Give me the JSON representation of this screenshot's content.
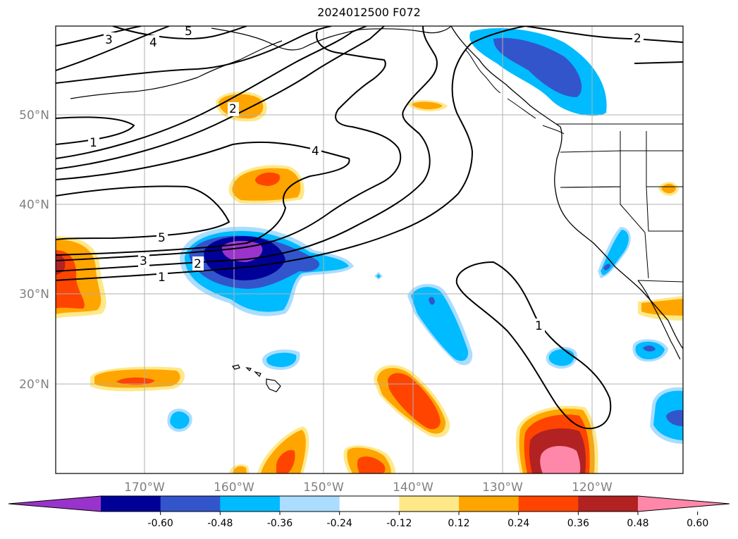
{
  "title": "2024012500 F072",
  "lat_labels": [
    "50°N",
    "40°N",
    "30°N",
    "20°N"
  ],
  "lon_labels": [
    "170°W",
    "160°W",
    "150°W",
    "140°W",
    "130°W",
    "120°W"
  ],
  "colorbar": {
    "colors": [
      "#9933cc",
      "#000099",
      "#3355cc",
      "#00bbff",
      "#aaddff",
      "#ffffff",
      "#ffe888",
      "#ffa500",
      "#ff4400",
      "#b22222",
      "#ff88aa"
    ],
    "tick_labels": [
      "-0.60",
      "-0.48",
      "-0.36",
      "-0.24",
      "-0.12",
      "0.12",
      "0.24",
      "0.36",
      "0.48",
      "0.60"
    ]
  },
  "contour_labels": [
    "3",
    "4",
    "5",
    "1",
    "2",
    "4",
    "5",
    "3",
    "2",
    "1",
    "1",
    "2"
  ],
  "colors": {
    "coast": "#000000",
    "grid": "#b0b0b0",
    "contour": "#000000"
  }
}
